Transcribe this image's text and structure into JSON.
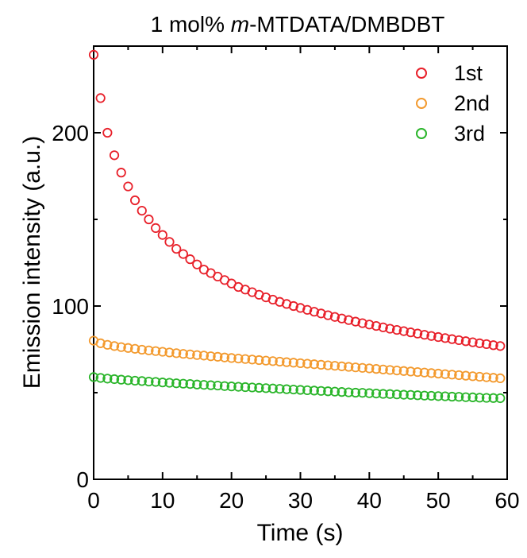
{
  "chart_data": {
    "type": "scatter",
    "title_prefix": "1 mol% ",
    "title_italic": "m",
    "title_suffix": "-MTDATA/DMBDBT",
    "xlabel": "Time (s)",
    "ylabel": "Emission intensity (a.u.)",
    "xlim": [
      0,
      60
    ],
    "ylim": [
      0,
      250
    ],
    "xticks": [
      0,
      10,
      20,
      30,
      40,
      50,
      60
    ],
    "yticks": [
      0,
      100,
      200
    ],
    "grid": false,
    "legend_position": "top-right",
    "marker": "open-circle",
    "series": [
      {
        "name": "1st",
        "color": "#e8202a",
        "x": [
          0,
          1,
          2,
          3,
          4,
          5,
          6,
          7,
          8,
          9,
          10,
          11,
          12,
          13,
          14,
          15,
          16,
          17,
          18,
          19,
          20,
          21,
          22,
          23,
          24,
          25,
          26,
          27,
          28,
          29,
          30,
          31,
          32,
          33,
          34,
          35,
          36,
          37,
          38,
          39,
          40,
          41,
          42,
          43,
          44,
          45,
          46,
          47,
          48,
          49,
          50,
          51,
          52,
          53,
          54,
          55,
          56,
          57,
          58,
          59
        ],
        "y": [
          245,
          220,
          200,
          187,
          177,
          169,
          161,
          155,
          150,
          145,
          141,
          137,
          133,
          130,
          127,
          124,
          121,
          119,
          117,
          115,
          113,
          111,
          109.5,
          108,
          106.5,
          105,
          103.7,
          102.4,
          101.2,
          100,
          98.9,
          97.8,
          96.7,
          95.7,
          94.7,
          93.7,
          92.8,
          91.9,
          91,
          90.1,
          89.3,
          88.5,
          87.7,
          86.9,
          86.2,
          85.5,
          84.8,
          84.1,
          83.4,
          82.7,
          82.1,
          81.5,
          80.9,
          80.3,
          79.7,
          79.1,
          78.5,
          78,
          77.4,
          76.9
        ]
      },
      {
        "name": "2nd",
        "color": "#f39a2e",
        "x": [
          0,
          1,
          2,
          3,
          4,
          5,
          6,
          7,
          8,
          9,
          10,
          11,
          12,
          13,
          14,
          15,
          16,
          17,
          18,
          19,
          20,
          21,
          22,
          23,
          24,
          25,
          26,
          27,
          28,
          29,
          30,
          31,
          32,
          33,
          34,
          35,
          36,
          37,
          38,
          39,
          40,
          41,
          42,
          43,
          44,
          45,
          46,
          47,
          48,
          49,
          50,
          51,
          52,
          53,
          54,
          55,
          56,
          57,
          58,
          59
        ],
        "y": [
          80,
          78.5,
          77.6,
          76.9,
          76.3,
          75.8,
          75.3,
          74.8,
          74.4,
          74,
          73.6,
          73.2,
          72.8,
          72.4,
          72.1,
          71.7,
          71.4,
          71,
          70.7,
          70.3,
          70,
          69.7,
          69.4,
          69.1,
          68.8,
          68.5,
          68.2,
          67.9,
          67.6,
          67.3,
          67,
          66.7,
          66.4,
          66.1,
          65.8,
          65.5,
          65.2,
          64.9,
          64.6,
          64.3,
          64,
          63.7,
          63.4,
          63.1,
          62.8,
          62.5,
          62.2,
          61.9,
          61.6,
          61.3,
          61,
          60.7,
          60.4,
          60.1,
          59.8,
          59.5,
          59.2,
          58.9,
          58.6,
          58.3
        ]
      },
      {
        "name": "3rd",
        "color": "#2ab52a",
        "x": [
          0,
          1,
          2,
          3,
          4,
          5,
          6,
          7,
          8,
          9,
          10,
          11,
          12,
          13,
          14,
          15,
          16,
          17,
          18,
          19,
          20,
          21,
          22,
          23,
          24,
          25,
          26,
          27,
          28,
          29,
          30,
          31,
          32,
          33,
          34,
          35,
          36,
          37,
          38,
          39,
          40,
          41,
          42,
          43,
          44,
          45,
          46,
          47,
          48,
          49,
          50,
          51,
          52,
          53,
          54,
          55,
          56,
          57,
          58,
          59
        ],
        "y": [
          59,
          58.5,
          58.1,
          57.8,
          57.5,
          57.2,
          56.9,
          56.7,
          56.4,
          56.2,
          55.9,
          55.7,
          55.4,
          55.2,
          55,
          54.7,
          54.5,
          54.3,
          54.1,
          53.8,
          53.6,
          53.4,
          53.2,
          53,
          52.8,
          52.6,
          52.4,
          52.2,
          52,
          51.8,
          51.6,
          51.4,
          51.2,
          51,
          50.8,
          50.6,
          50.4,
          50.2,
          50,
          49.9,
          49.7,
          49.5,
          49.3,
          49.2,
          49,
          48.8,
          48.7,
          48.5,
          48.3,
          48.2,
          48,
          47.9,
          47.7,
          47.6,
          47.4,
          47.3,
          47.1,
          47,
          46.9,
          46.8
        ]
      }
    ]
  }
}
